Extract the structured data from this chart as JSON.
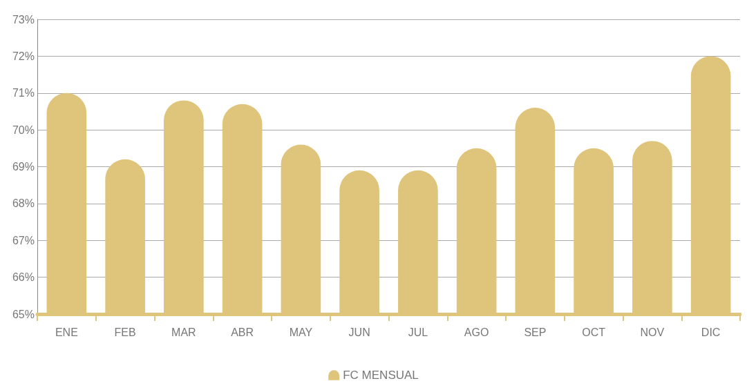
{
  "chart_data": {
    "type": "bar",
    "categories": [
      "ENE",
      "FEB",
      "MAR",
      "ABR",
      "MAY",
      "JUN",
      "JUL",
      "AGO",
      "SEP",
      "OCT",
      "NOV",
      "DIC"
    ],
    "series": [
      {
        "name": "FC MENSUAL",
        "color": "#dfc47c",
        "values": [
          71.0,
          69.2,
          70.8,
          70.7,
          69.6,
          68.9,
          68.9,
          69.5,
          70.6,
          69.5,
          69.7,
          72.0
        ]
      }
    ],
    "ylim": [
      65,
      73
    ],
    "yticks": [
      {
        "value": 65,
        "label": "65%"
      },
      {
        "value": 66,
        "label": "66%"
      },
      {
        "value": 67,
        "label": "67%"
      },
      {
        "value": 68,
        "label": "68%"
      },
      {
        "value": 69,
        "label": "69%"
      },
      {
        "value": 70,
        "label": "70%"
      },
      {
        "value": 71,
        "label": "71%"
      },
      {
        "value": 72,
        "label": "72%"
      },
      {
        "value": 73,
        "label": "73%"
      }
    ],
    "grid": "y",
    "legend": "bottom"
  }
}
